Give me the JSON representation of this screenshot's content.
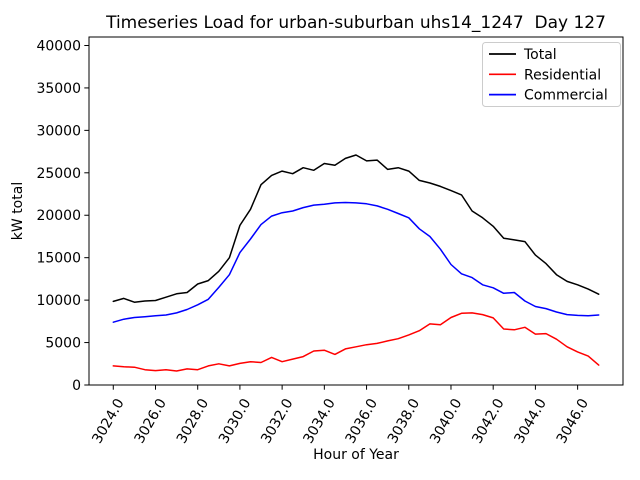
{
  "chart_data": {
    "type": "line",
    "title": "Timeseries Load for urban-suburban uhs14_1247  Day 127",
    "xlabel": "Hour of Year",
    "ylabel": "kW total",
    "xlim": [
      3022.85,
      3048.15
    ],
    "ylim": [
      0,
      41000
    ],
    "grid": false,
    "axis_color": "#000000",
    "background_color": "#ffffff",
    "x_tick_values": [
      3024,
      3026,
      3028,
      3030,
      3032,
      3034,
      3036,
      3038,
      3040,
      3042,
      3044,
      3046
    ],
    "x_tick_labels": [
      "3024.0",
      "3026.0",
      "3028.0",
      "3030.0",
      "3032.0",
      "3034.0",
      "3036.0",
      "3038.0",
      "3040.0",
      "3042.0",
      "3044.0",
      "3046.0"
    ],
    "y_tick_values": [
      0,
      5000,
      10000,
      15000,
      20000,
      25000,
      30000,
      35000,
      40000
    ],
    "y_tick_labels": [
      "0",
      "5000",
      "10000",
      "15000",
      "20000",
      "25000",
      "30000",
      "35000",
      "40000"
    ],
    "legend": {
      "position": "upper right",
      "border_color": "#cccccc"
    },
    "x": [
      3024.0,
      3024.5,
      3025.0,
      3025.5,
      3026.0,
      3026.5,
      3027.0,
      3027.5,
      3028.0,
      3028.5,
      3029.0,
      3029.5,
      3030.0,
      3030.5,
      3031.0,
      3031.5,
      3032.0,
      3032.5,
      3033.0,
      3033.5,
      3034.0,
      3034.5,
      3035.0,
      3035.5,
      3036.0,
      3036.5,
      3037.0,
      3037.5,
      3038.0,
      3038.5,
      3039.0,
      3039.5,
      3040.0,
      3040.5,
      3041.0,
      3041.5,
      3042.0,
      3042.5,
      3043.0,
      3043.5,
      3044.0,
      3044.5,
      3045.0,
      3045.5,
      3046.0,
      3046.5,
      3047.0
    ],
    "series": [
      {
        "name": "Total",
        "color": "#000000",
        "values": [
          9850,
          10200,
          9750,
          9900,
          9950,
          10350,
          10750,
          10900,
          11900,
          12300,
          13400,
          15000,
          18800,
          20700,
          23600,
          24700,
          25200,
          24900,
          25600,
          25300,
          26100,
          25900,
          26700,
          27100,
          26400,
          26500,
          25400,
          25600,
          25200,
          24100,
          23800,
          23400,
          22900,
          22400,
          20500,
          19700,
          18700,
          17300,
          17100,
          16900,
          15300,
          14300,
          13000,
          12200,
          11800,
          11300,
          10700
        ]
      },
      {
        "name": "Residential",
        "color": "#ff0000",
        "values": [
          2250,
          2150,
          2100,
          1800,
          1700,
          1800,
          1650,
          1900,
          1800,
          2250,
          2500,
          2250,
          2550,
          2750,
          2650,
          3250,
          2750,
          3050,
          3350,
          4000,
          4100,
          3600,
          4250,
          4500,
          4750,
          4900,
          5200,
          5450,
          5900,
          6400,
          7200,
          7100,
          7950,
          8450,
          8500,
          8300,
          7900,
          6600,
          6500,
          6800,
          6000,
          6050,
          5400,
          4500,
          3900,
          3400,
          2350
        ]
      },
      {
        "name": "Commercial",
        "color": "#0000ff",
        "values": [
          7400,
          7750,
          7950,
          8050,
          8150,
          8250,
          8500,
          8900,
          9450,
          10100,
          11500,
          13000,
          15600,
          17200,
          18900,
          19900,
          20300,
          20500,
          20900,
          21200,
          21300,
          21450,
          21500,
          21450,
          21350,
          21100,
          20700,
          20200,
          19700,
          18400,
          17500,
          16000,
          14200,
          13100,
          12650,
          11800,
          11450,
          10800,
          10900,
          9900,
          9250,
          9000,
          8600,
          8300,
          8200,
          8150,
          8250
        ]
      }
    ]
  }
}
